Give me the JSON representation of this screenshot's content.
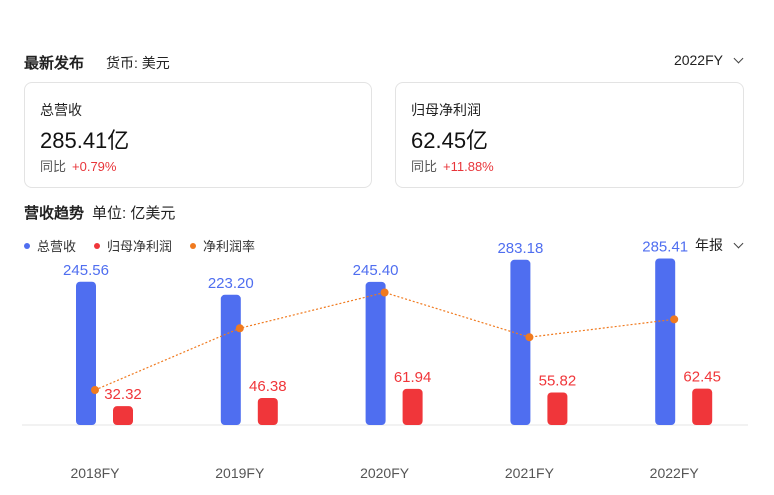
{
  "header": {
    "title": "最新发布",
    "currency": "货币: 美元",
    "period": "2022FY"
  },
  "cards": {
    "revenue": {
      "label": "总营收",
      "value": "285.41亿",
      "yoy_label": "同比",
      "yoy_value": "+0.79%"
    },
    "net_profit": {
      "label": "归母净利润",
      "value": "62.45亿",
      "yoy_label": "同比",
      "yoy_value": "+11.88%"
    }
  },
  "trend": {
    "title": "营收趋势",
    "unit": "单位: 亿美元",
    "report_type": "年报"
  },
  "colors": {
    "revenue": "#4f6ef0",
    "net_profit": "#f0363a",
    "margin": "#f07a1f",
    "up": "#e8353a"
  },
  "chart_data": {
    "type": "bar",
    "categories": [
      "2018FY",
      "2019FY",
      "2020FY",
      "2021FY",
      "2022FY"
    ],
    "series": [
      {
        "name": "总营收",
        "type": "bar",
        "values": [
          245.56,
          223.2,
          245.4,
          283.18,
          285.41
        ],
        "labels": [
          "245.56",
          "223.20",
          "245.40",
          "283.18",
          "285.41"
        ]
      },
      {
        "name": "归母净利润",
        "type": "bar",
        "values": [
          32.32,
          46.38,
          61.94,
          55.82,
          62.45
        ],
        "labels": [
          "32.32",
          "46.38",
          "61.94",
          "55.82",
          "62.45"
        ]
      },
      {
        "name": "净利润率",
        "type": "line",
        "values": [
          13.2,
          20.8,
          25.2,
          19.7,
          21.9
        ]
      }
    ],
    "ylim": [
      0,
      300
    ],
    "grid": false,
    "legend": "top-left"
  }
}
